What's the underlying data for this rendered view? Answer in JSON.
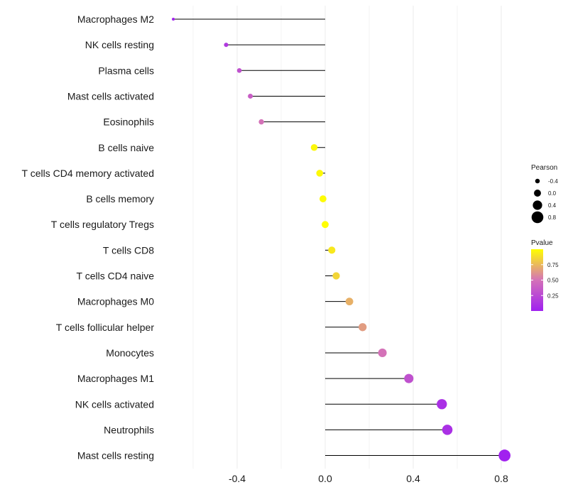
{
  "chart_data": {
    "type": "lollipop",
    "title": "",
    "xlabel": "",
    "ylabel": "",
    "xlim": [
      -0.75,
      0.85
    ],
    "x_ticks": [
      -0.4,
      0.0,
      0.4,
      0.8
    ],
    "x_tick_labels": [
      "-0.4",
      "0.0",
      "0.4",
      "0.8"
    ],
    "grid": true,
    "categories": [
      "Macrophages M2",
      "NK cells resting",
      "Plasma cells",
      "Mast cells activated",
      "Eosinophils",
      "B cells naive",
      "T cells CD4 memory activated",
      "B cells memory",
      "T cells regulatory  Tregs ",
      "T cells CD8",
      "T cells CD4 naive",
      "Macrophages M0",
      "T cells follicular helper",
      "Monocytes",
      "Macrophages M1",
      "NK cells activated",
      "Neutrophils",
      "Mast cells resting"
    ],
    "pearson": [
      -0.69,
      -0.45,
      -0.39,
      -0.34,
      -0.29,
      -0.05,
      -0.025,
      -0.01,
      0.0,
      0.03,
      0.05,
      0.11,
      0.17,
      0.26,
      0.38,
      0.53,
      0.555,
      0.815
    ],
    "pvalue": [
      0.02,
      0.15,
      0.3,
      0.38,
      0.5,
      0.97,
      0.98,
      0.99,
      0.995,
      0.92,
      0.85,
      0.72,
      0.65,
      0.5,
      0.3,
      0.1,
      0.1,
      0.005
    ],
    "legend_size": {
      "title": "Pearson",
      "items": [
        {
          "label": "-0.4",
          "value": -0.4
        },
        {
          "label": "0.0",
          "value": 0.0
        },
        {
          "label": "0.4",
          "value": 0.4
        },
        {
          "label": "0.8",
          "value": 0.8
        }
      ]
    },
    "legend_color": {
      "title": "Pvalue",
      "ticks": [
        {
          "label": "0.75",
          "value": 0.75
        },
        {
          "label": "0.50",
          "value": 0.5
        },
        {
          "label": "0.25",
          "value": 0.25
        }
      ],
      "low_color": "#a020f0",
      "mid_color": "#d472b8",
      "high_color": "#ffff00",
      "range": [
        0.0,
        1.0
      ]
    },
    "segment_color": "#000000",
    "grid_color": "#ebebeb"
  }
}
